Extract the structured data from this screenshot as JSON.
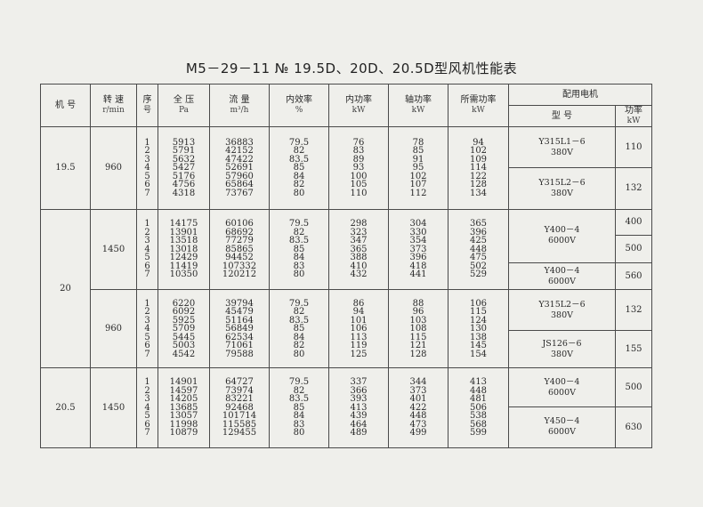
{
  "title": "M5－29－11 № 19.5D、20D、20.5D型风机性能表",
  "headers": {
    "machine": "机 号",
    "speed": "转 速",
    "speed_unit": "r/min",
    "seq": "序",
    "seq2": "号",
    "pressure": "全 压",
    "pressure_unit": "Pa",
    "flow": "流 量",
    "flow_unit": "m³/h",
    "eff": "内效率",
    "eff_unit": "%",
    "inpower": "内功率",
    "inpower_unit": "kW",
    "shaft": "轴功率",
    "shaft_unit": "kW",
    "req": "所需功率",
    "req_unit": "kW",
    "motor": "配用电机",
    "motor_model": "型 号",
    "motor_power": "功率",
    "motor_power_unit": "kW"
  },
  "groups": [
    {
      "machine": "19.5",
      "speed": "960",
      "seq": [
        "1",
        "2",
        "3",
        "4",
        "5",
        "6",
        "7"
      ],
      "pressure": [
        "5913",
        "5791",
        "5632",
        "5427",
        "5176",
        "4756",
        "4318"
      ],
      "flow": [
        "36883",
        "42152",
        "47422",
        "52691",
        "57960",
        "65864",
        "73767"
      ],
      "eff": [
        "79.5",
        "82",
        "83.5",
        "85",
        "84",
        "82",
        "80"
      ],
      "inpower": [
        "76",
        "83",
        "89",
        "93",
        "100",
        "105",
        "110"
      ],
      "shaft": [
        "78",
        "85",
        "91",
        "95",
        "102",
        "107",
        "112"
      ],
      "req": [
        "94",
        "102",
        "109",
        "114",
        "122",
        "128",
        "134"
      ],
      "motors": [
        {
          "model": "Y315L1－6",
          "volt": "380V",
          "power": "110"
        },
        {
          "model": "Y315L2－6",
          "volt": "380V",
          "power": "132"
        }
      ]
    },
    {
      "machine": "20",
      "speed": "1450",
      "seq": [
        "1",
        "2",
        "3",
        "4",
        "5",
        "6",
        "7"
      ],
      "pressure": [
        "14175",
        "13901",
        "13518",
        "13018",
        "12429",
        "11419",
        "10350"
      ],
      "flow": [
        "60106",
        "68692",
        "77279",
        "85865",
        "94452",
        "107332",
        "120212"
      ],
      "eff": [
        "79.5",
        "82",
        "83.5",
        "85",
        "84",
        "83",
        "80"
      ],
      "inpower": [
        "298",
        "323",
        "347",
        "365",
        "388",
        "410",
        "432"
      ],
      "shaft": [
        "304",
        "330",
        "354",
        "373",
        "396",
        "418",
        "441"
      ],
      "req": [
        "365",
        "396",
        "425",
        "448",
        "475",
        "502",
        "529"
      ],
      "motors": [
        {
          "model": "Y400－4",
          "volt": "6000V",
          "power_a": "400",
          "power_b": "500"
        },
        {
          "model": "Y400－4",
          "volt": "6000V",
          "power": "560"
        }
      ]
    },
    {
      "speed": "960",
      "seq": [
        "1",
        "2",
        "3",
        "4",
        "5",
        "6",
        "7"
      ],
      "pressure": [
        "6220",
        "6092",
        "5925",
        "5709",
        "5445",
        "5003",
        "4542"
      ],
      "flow": [
        "39794",
        "45479",
        "51164",
        "56849",
        "62534",
        "71061",
        "79588"
      ],
      "eff": [
        "79.5",
        "82",
        "83.5",
        "85",
        "84",
        "82",
        "80"
      ],
      "inpower": [
        "86",
        "94",
        "101",
        "106",
        "113",
        "119",
        "125"
      ],
      "shaft": [
        "88",
        "96",
        "103",
        "108",
        "115",
        "121",
        "128"
      ],
      "req": [
        "106",
        "115",
        "124",
        "130",
        "138",
        "145",
        "154"
      ],
      "motors": [
        {
          "model": "Y315L2－6",
          "volt": "380V",
          "power": "132"
        },
        {
          "model": "JS126－6",
          "volt": "380V",
          "power": "155"
        }
      ]
    },
    {
      "machine": "20.5",
      "speed": "1450",
      "seq": [
        "1",
        "2",
        "3",
        "4",
        "5",
        "6",
        "7"
      ],
      "pressure": [
        "14901",
        "14597",
        "14205",
        "13685",
        "13057",
        "11998",
        "10879"
      ],
      "flow": [
        "64727",
        "73974",
        "83221",
        "92468",
        "101714",
        "115585",
        "129455"
      ],
      "eff": [
        "79.5",
        "82",
        "83.5",
        "85",
        "84",
        "83",
        "80"
      ],
      "inpower": [
        "337",
        "366",
        "393",
        "413",
        "439",
        "464",
        "489"
      ],
      "shaft": [
        "344",
        "373",
        "401",
        "422",
        "448",
        "473",
        "499"
      ],
      "req": [
        "413",
        "448",
        "481",
        "506",
        "538",
        "568",
        "599"
      ],
      "motors": [
        {
          "model": "Y400－4",
          "volt": "6000V",
          "power": "500"
        },
        {
          "model": "Y450－4",
          "volt": "6000V",
          "power": "630"
        }
      ]
    }
  ]
}
